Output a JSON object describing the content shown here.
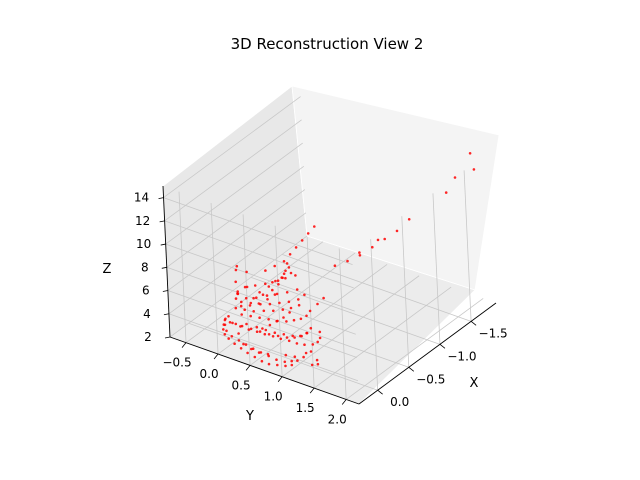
{
  "chart_data": {
    "type": "scatter",
    "projection": "3d",
    "title": "3D Reconstruction View 2",
    "xlabel": "X",
    "ylabel": "Y",
    "zlabel": "Z",
    "xlim": [
      0.3,
      -1.9
    ],
    "ylim": [
      -0.75,
      2.2
    ],
    "zlim": [
      2,
      15
    ],
    "xticks": [
      0.0,
      -0.5,
      -1.0,
      -1.5
    ],
    "xtick_labels": [
      "0.0",
      "−0.5",
      "−1.0",
      "−1.5"
    ],
    "yticks": [
      -0.5,
      0.0,
      0.5,
      1.0,
      1.5,
      2.0
    ],
    "ytick_labels": [
      "−0.5",
      "0.0",
      "0.5",
      "1.0",
      "1.5",
      "2.0"
    ],
    "zticks": [
      2,
      4,
      6,
      8,
      10,
      12,
      14
    ],
    "ztick_labels": [
      "2",
      "4",
      "6",
      "8",
      "10",
      "12",
      "14"
    ],
    "grid": true,
    "marker_color": "#ff0000",
    "pane_color": "#f2f2f2",
    "grid_color": "#c8c8c8",
    "points": [
      [
        0.12,
        0.98,
        2.6
      ],
      [
        0.15,
        0.9,
        2.5
      ],
      [
        0.1,
        1.05,
        2.7
      ],
      [
        0.05,
        1.1,
        2.9
      ],
      [
        -0.02,
        1.15,
        3.2
      ],
      [
        0.18,
        0.8,
        2.6
      ],
      [
        0.2,
        0.7,
        2.8
      ],
      [
        0.22,
        0.6,
        3.0
      ],
      [
        0.24,
        0.5,
        3.2
      ],
      [
        0.25,
        0.4,
        3.4
      ],
      [
        0.26,
        0.3,
        3.6
      ],
      [
        0.27,
        0.2,
        3.8
      ],
      [
        0.25,
        0.1,
        4.0
      ],
      [
        0.22,
        0.05,
        4.3
      ],
      [
        0.18,
        0.02,
        4.6
      ],
      [
        0.14,
        0.05,
        4.2
      ],
      [
        0.1,
        0.1,
        4.0
      ],
      [
        0.08,
        0.15,
        3.8
      ],
      [
        0.05,
        0.25,
        3.6
      ],
      [
        0.02,
        0.35,
        3.5
      ],
      [
        0.0,
        0.45,
        3.4
      ],
      [
        -0.03,
        0.55,
        3.3
      ],
      [
        -0.05,
        0.65,
        3.2
      ],
      [
        -0.08,
        0.75,
        3.1
      ],
      [
        -0.1,
        0.85,
        3.0
      ],
      [
        -0.12,
        0.95,
        3.0
      ],
      [
        -0.15,
        1.05,
        3.1
      ],
      [
        -0.18,
        1.1,
        3.3
      ],
      [
        -0.2,
        1.12,
        3.6
      ],
      [
        -0.22,
        1.1,
        4.0
      ],
      [
        0.2,
        0.3,
        4.6
      ],
      [
        0.16,
        0.4,
        4.4
      ],
      [
        0.12,
        0.5,
        4.2
      ],
      [
        0.08,
        0.6,
        4.0
      ],
      [
        0.04,
        0.7,
        3.9
      ],
      [
        0.0,
        0.8,
        3.8
      ],
      [
        -0.04,
        0.88,
        3.8
      ],
      [
        -0.08,
        0.95,
        3.9
      ],
      [
        -0.12,
        1.0,
        4.1
      ],
      [
        -0.16,
        1.02,
        4.4
      ],
      [
        0.1,
        0.2,
        5.0
      ],
      [
        0.06,
        0.3,
        4.9
      ],
      [
        0.02,
        0.4,
        4.8
      ],
      [
        -0.02,
        0.5,
        4.7
      ],
      [
        -0.06,
        0.6,
        4.6
      ],
      [
        -0.1,
        0.7,
        4.6
      ],
      [
        -0.14,
        0.78,
        4.7
      ],
      [
        -0.18,
        0.85,
        4.8
      ],
      [
        -0.22,
        0.9,
        5.0
      ],
      [
        -0.26,
        0.92,
        5.3
      ],
      [
        0.0,
        0.1,
        5.5
      ],
      [
        -0.05,
        0.2,
        5.4
      ],
      [
        -0.1,
        0.3,
        5.3
      ],
      [
        -0.15,
        0.4,
        5.3
      ],
      [
        -0.2,
        0.5,
        5.4
      ],
      [
        -0.25,
        0.6,
        5.5
      ],
      [
        -0.3,
        0.7,
        5.7
      ],
      [
        -0.35,
        0.75,
        6.0
      ],
      [
        -0.05,
        0.0,
        6.0
      ],
      [
        -0.12,
        0.05,
        6.2
      ],
      [
        -0.18,
        0.15,
        6.3
      ],
      [
        -0.24,
        0.25,
        6.4
      ],
      [
        -0.3,
        0.35,
        6.6
      ],
      [
        -0.36,
        0.45,
        6.8
      ],
      [
        -0.42,
        0.55,
        7.0
      ],
      [
        0.05,
        0.35,
        6.5
      ],
      [
        0.0,
        0.45,
        6.8
      ],
      [
        -0.05,
        0.55,
        7.2
      ],
      [
        -0.1,
        0.6,
        7.6
      ],
      [
        -0.15,
        0.62,
        8.0
      ],
      [
        -0.2,
        0.62,
        8.4
      ],
      [
        -0.25,
        0.6,
        8.8
      ],
      [
        0.1,
        0.5,
        7.5
      ],
      [
        0.05,
        0.6,
        8.0
      ],
      [
        0.0,
        0.7,
        8.5
      ],
      [
        -0.05,
        0.75,
        9.0
      ],
      [
        -0.1,
        0.78,
        9.4
      ],
      [
        0.15,
        0.2,
        7.0
      ],
      [
        0.12,
        0.15,
        7.8
      ],
      [
        0.08,
        0.12,
        8.6
      ],
      [
        -0.3,
        0.2,
        7.2
      ],
      [
        -0.35,
        0.3,
        7.6
      ],
      [
        -0.4,
        0.4,
        8.0
      ],
      [
        -0.45,
        0.45,
        8.5
      ],
      [
        -0.5,
        0.5,
        9.0
      ],
      [
        -0.55,
        0.55,
        9.5
      ],
      [
        -0.6,
        0.6,
        10.0
      ],
      [
        -0.65,
        0.65,
        10.5
      ],
      [
        -0.3,
        -0.1,
        6.5
      ],
      [
        -0.25,
        -0.2,
        7.0
      ],
      [
        -0.6,
        1.0,
        8.0
      ],
      [
        -0.7,
        1.1,
        8.2
      ],
      [
        -0.8,
        1.2,
        8.5
      ],
      [
        -0.9,
        1.3,
        9.0
      ],
      [
        -1.0,
        1.4,
        9.5
      ],
      [
        -0.5,
        1.5,
        10.5
      ],
      [
        -0.7,
        1.6,
        11.0
      ],
      [
        -1.5,
        1.9,
        12.5
      ],
      [
        -1.55,
        2.0,
        13.8
      ],
      [
        -1.85,
        1.95,
        14.6
      ],
      [
        -1.8,
        2.05,
        13.6
      ],
      [
        -1.1,
        1.5,
        10.0
      ],
      [
        -1.2,
        1.6,
        10.8
      ],
      [
        0.2,
        0.55,
        2.8
      ],
      [
        0.16,
        0.65,
        2.7
      ],
      [
        0.08,
        0.85,
        2.7
      ],
      [
        0.04,
        0.95,
        2.6
      ],
      [
        -0.04,
        1.05,
        2.8
      ],
      [
        0.22,
        0.45,
        3.0
      ],
      [
        0.24,
        0.35,
        3.3
      ],
      [
        0.21,
        0.25,
        3.9
      ],
      [
        0.17,
        0.12,
        4.4
      ],
      [
        0.13,
        0.3,
        4.5
      ],
      [
        0.09,
        0.42,
        4.3
      ],
      [
        0.05,
        0.52,
        4.1
      ],
      [
        0.01,
        0.62,
        3.9
      ],
      [
        -0.03,
        0.72,
        3.8
      ],
      [
        -0.07,
        0.82,
        3.7
      ],
      [
        -0.11,
        0.9,
        3.7
      ],
      [
        -0.15,
        0.96,
        3.9
      ],
      [
        0.07,
        0.08,
        5.2
      ],
      [
        0.03,
        0.18,
        5.1
      ],
      [
        -0.01,
        0.28,
        5.0
      ],
      [
        -0.07,
        0.38,
        5.0
      ],
      [
        -0.12,
        0.48,
        5.0
      ],
      [
        -0.17,
        0.58,
        5.1
      ],
      [
        -0.22,
        0.66,
        5.2
      ],
      [
        -0.27,
        0.74,
        5.4
      ],
      [
        0.03,
        0.05,
        5.8
      ],
      [
        -0.03,
        0.15,
        5.8
      ],
      [
        -0.09,
        0.25,
        5.8
      ],
      [
        -0.16,
        0.35,
        5.9
      ],
      [
        -0.22,
        0.45,
        6.0
      ],
      [
        -0.28,
        0.55,
        6.1
      ],
      [
        -0.34,
        0.65,
        6.3
      ],
      [
        0.18,
        0.28,
        6.2
      ],
      [
        0.14,
        0.38,
        6.3
      ],
      [
        0.1,
        0.48,
        6.5
      ],
      [
        0.06,
        0.58,
        6.9
      ],
      [
        0.02,
        0.66,
        7.3
      ],
      [
        -0.4,
        0.2,
        5.8
      ],
      [
        -0.45,
        0.3,
        6.2
      ],
      [
        -0.5,
        0.4,
        6.6
      ],
      [
        -0.1,
        -0.05,
        5.5
      ],
      [
        -0.2,
        0.0,
        5.8
      ],
      [
        0.25,
        0.75,
        2.4
      ],
      [
        0.22,
        0.85,
        2.4
      ],
      [
        0.19,
        0.95,
        2.4
      ],
      [
        0.16,
        1.02,
        2.5
      ],
      [
        0.26,
        0.65,
        2.5
      ],
      [
        0.27,
        0.55,
        2.7
      ],
      [
        0.28,
        0.45,
        2.9
      ],
      [
        0.28,
        0.35,
        3.1
      ],
      [
        0.28,
        0.25,
        3.3
      ],
      [
        0.27,
        0.15,
        3.5
      ],
      [
        0.26,
        0.08,
        3.7
      ],
      [
        0.23,
        0.03,
        3.9
      ],
      [
        0.19,
        0.0,
        4.1
      ],
      [
        0.15,
        -0.02,
        4.3
      ],
      [
        0.11,
        0.0,
        4.5
      ],
      [
        -0.06,
        1.2,
        2.4
      ],
      [
        -0.02,
        1.25,
        2.3
      ],
      [
        0.02,
        1.2,
        2.3
      ],
      [
        -0.35,
        0.95,
        5.6
      ],
      [
        -0.4,
        1.0,
        6.0
      ],
      [
        0.1,
        0.75,
        5.5
      ],
      [
        0.06,
        0.82,
        5.8
      ],
      [
        0.02,
        0.88,
        6.2
      ],
      [
        0.14,
        0.68,
        5.2
      ],
      [
        0.18,
        0.6,
        4.9
      ]
    ]
  }
}
